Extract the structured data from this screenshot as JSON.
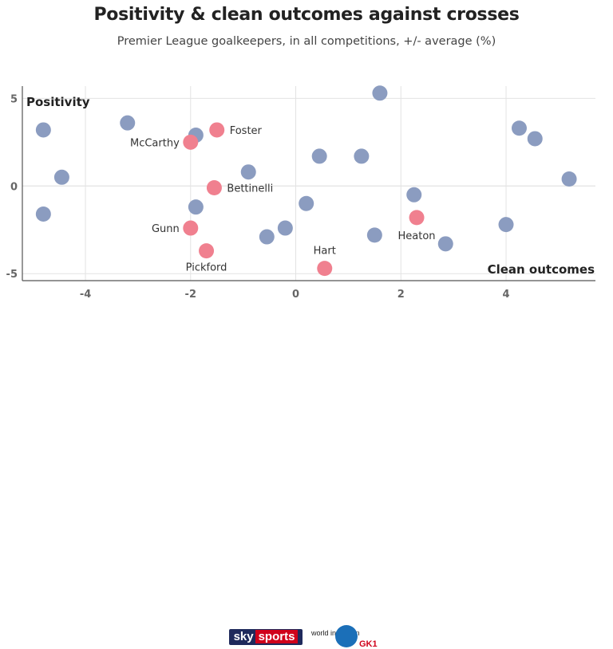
{
  "header": {
    "title": "Positivity & clean outcomes against crosses",
    "subtitle": "Premier League goalkeepers, in all competitions, +/- average (%)"
  },
  "footer": {
    "logo_sky": "sky",
    "logo_sports": "sports",
    "logo_world_in_motion": "world in motion",
    "logo_gk1": "GK1"
  },
  "colors": {
    "background": "#ffffff",
    "other": "#8b9cc0",
    "highlight": "#f0808f",
    "grid": "#e3e3e3",
    "axis": "#555555"
  },
  "chart_data": {
    "type": "scatter",
    "xlabel": "Clean outcomes",
    "ylabel": "Positivity",
    "xlim": [
      -5.2,
      5.7
    ],
    "ylim": [
      -5.4,
      5.7
    ],
    "xticks": [
      -4,
      -2,
      0,
      2,
      4
    ],
    "yticks": [
      5,
      0,
      -5
    ],
    "grid": true,
    "series": [
      {
        "points": [
          {
            "x": -4.8,
            "y": 3.2
          },
          {
            "x": -3.2,
            "y": 3.6
          },
          {
            "x": -1.9,
            "y": 2.9
          },
          {
            "x": -4.45,
            "y": 0.5
          },
          {
            "x": -0.9,
            "y": 0.8
          },
          {
            "x": -4.8,
            "y": -1.6
          },
          {
            "x": -1.9,
            "y": -1.2
          },
          {
            "x": 0.45,
            "y": 1.7
          },
          {
            "x": 1.25,
            "y": 1.7
          },
          {
            "x": 1.6,
            "y": 5.3
          },
          {
            "x": 0.2,
            "y": -1.0
          },
          {
            "x": -0.2,
            "y": -2.4
          },
          {
            "x": -0.55,
            "y": -2.9
          },
          {
            "x": 1.5,
            "y": -2.8
          },
          {
            "x": 2.25,
            "y": -0.5
          },
          {
            "x": 2.85,
            "y": -3.3
          },
          {
            "x": 4.0,
            "y": -2.2
          },
          {
            "x": 4.25,
            "y": 3.3
          },
          {
            "x": 4.55,
            "y": 2.7
          },
          {
            "x": 5.2,
            "y": 0.4
          }
        ]
      },
      {
        "points": [
          {
            "x": -1.5,
            "y": 3.2,
            "label": "Foster"
          },
          {
            "x": -2.0,
            "y": 2.5,
            "label": "McCarthy"
          },
          {
            "x": -1.55,
            "y": -0.1,
            "label": "Bettinelli"
          },
          {
            "x": -2.0,
            "y": -2.4,
            "label": "Gunn"
          },
          {
            "x": -1.7,
            "y": -3.7,
            "label": "Pickford"
          },
          {
            "x": 0.55,
            "y": -4.7,
            "label": "Hart"
          },
          {
            "x": 2.3,
            "y": -1.8,
            "label": "Heaton"
          }
        ]
      }
    ]
  }
}
